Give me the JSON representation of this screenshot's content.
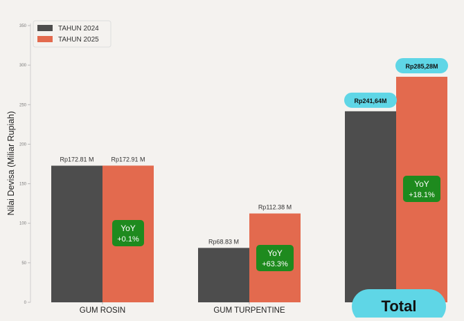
{
  "chart_data": {
    "type": "bar",
    "ylabel": "Nilai Devisa (Miliar Rupiah)",
    "xlabel": "",
    "ylim": [
      0,
      350
    ],
    "yticks": [
      0,
      50,
      100,
      150,
      200,
      250,
      300,
      350
    ],
    "categories": [
      "GUM ROSIN",
      "GUM TURPENTINE",
      ""
    ],
    "series": [
      {
        "name": "TAHUN 2024",
        "color": "#4d4d4d",
        "values": [
          172.81,
          68.83,
          241.64
        ],
        "labels": [
          "Rp172.81 M",
          "Rp68.83 M",
          "Rp241,64M"
        ]
      },
      {
        "name": "TAHUN 2025",
        "color": "#e36a4e",
        "values": [
          172.91,
          112.38,
          285.28
        ],
        "labels": [
          "Rp172.91 M",
          "Rp112.38 M",
          "Rp285,28M"
        ]
      }
    ],
    "yoy": [
      {
        "line1": "YoY",
        "line2": "+0.1%"
      },
      {
        "line1": "YoY",
        "line2": "+63.3%"
      },
      {
        "line1": "YoY",
        "line2": "+18.1%"
      }
    ],
    "legend_position": "top-left",
    "grid": false
  },
  "total_badge": "Total",
  "colors": {
    "background": "#f4f2ef",
    "yoy_badge": "#1e8a1e",
    "highlight_pill": "#5fd6e6"
  }
}
